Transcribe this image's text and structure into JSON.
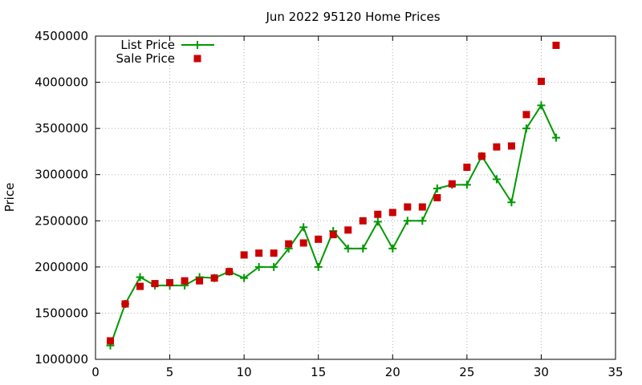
{
  "chart_data": {
    "type": "line",
    "title": "Jun 2022 95120 Home Prices",
    "xlabel": "",
    "ylabel": "Price",
    "xlim": [
      0,
      35
    ],
    "ylim": [
      1000000,
      4500000
    ],
    "xticks": [
      0,
      5,
      10,
      15,
      20,
      25,
      30,
      35
    ],
    "yticks": [
      1000000,
      1500000,
      2000000,
      2500000,
      3000000,
      3500000,
      4000000,
      4500000
    ],
    "grid": true,
    "legend": "top-left",
    "series": [
      {
        "name": "List Price",
        "style": "line+marker",
        "marker": "plus",
        "color": "#009900",
        "x": [
          1,
          2,
          3,
          4,
          5,
          6,
          7,
          8,
          9,
          10,
          11,
          12,
          13,
          14,
          15,
          16,
          17,
          18,
          19,
          20,
          21,
          22,
          23,
          24,
          25,
          26,
          27,
          28,
          29,
          30,
          31
        ],
        "y": [
          1150000,
          1600000,
          1890000,
          1800000,
          1800000,
          1800000,
          1890000,
          1880000,
          1950000,
          1880000,
          2000000,
          2000000,
          2200000,
          2430000,
          2000000,
          2390000,
          2200000,
          2200000,
          2490000,
          2200000,
          2500000,
          2500000,
          2850000,
          2890000,
          2890000,
          3200000,
          2950000,
          2700000,
          3500000,
          3750000,
          3400000
        ]
      },
      {
        "name": "Sale Price",
        "style": "marker",
        "marker": "square",
        "color": "#cc0000",
        "x": [
          1,
          2,
          3,
          4,
          5,
          6,
          7,
          8,
          9,
          10,
          11,
          12,
          13,
          14,
          15,
          16,
          17,
          18,
          19,
          20,
          21,
          22,
          23,
          24,
          25,
          26,
          27,
          28,
          29,
          30,
          31
        ],
        "y": [
          1200000,
          1600000,
          1790000,
          1820000,
          1830000,
          1850000,
          1850000,
          1880000,
          1950000,
          2130000,
          2150000,
          2150000,
          2250000,
          2260000,
          2300000,
          2350000,
          2400000,
          2500000,
          2570000,
          2590000,
          2650000,
          2650000,
          2750000,
          2900000,
          3080000,
          3200000,
          3300000,
          3310000,
          3650000,
          4010000,
          4400000
        ]
      }
    ]
  }
}
